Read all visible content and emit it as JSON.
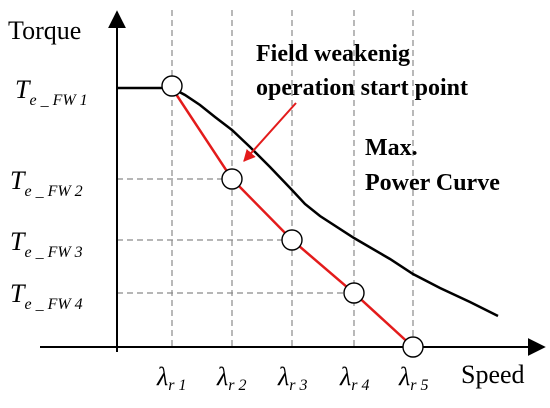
{
  "diagram": {
    "y_axis_title": "Torque",
    "x_axis_title": "Speed",
    "torque_levels": [
      {
        "main": "T",
        "sub": "e _ FW 1"
      },
      {
        "main": "T",
        "sub": "e _ FW 2"
      },
      {
        "main": "T",
        "sub": "e _ FW 3"
      },
      {
        "main": "T",
        "sub": "e _ FW 4"
      }
    ],
    "speed_levels": [
      {
        "main": "λ",
        "sub": "r 1"
      },
      {
        "main": "λ",
        "sub": "r 2"
      },
      {
        "main": "λ",
        "sub": "r 3"
      },
      {
        "main": "λ",
        "sub": "r 4"
      },
      {
        "main": "λ",
        "sub": "r 5"
      }
    ],
    "annotation_start_point": [
      "Field weakenig",
      "operation start point"
    ],
    "annotation_max_power": [
      "Max.",
      "Power Curve"
    ],
    "colors": {
      "axis": "#000000",
      "operation_line": "#e31b1b",
      "arrow": "#e31b1b",
      "max_power_curve": "#000000",
      "guide_lines": "#8a8a8a",
      "markers": "#ffffff"
    }
  }
}
